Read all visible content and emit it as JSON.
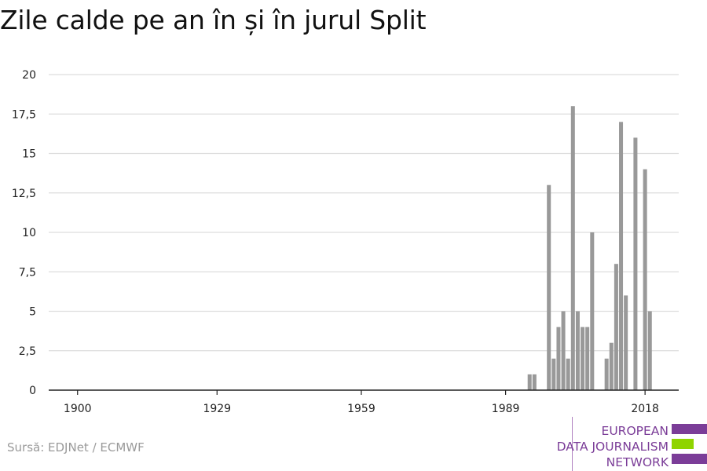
{
  "title": "Zile calde pe an în și în jurul Split",
  "source": "Sursă: EDJNet / ECMWF",
  "logo": {
    "lines": [
      "EUROPEAN",
      "DATA JOURNALISM",
      "NETWORK"
    ],
    "colors": {
      "text": "#7b3d98",
      "bar_purple": "#7b3d98",
      "bar_green": "#8fd400"
    }
  },
  "chart_data": {
    "type": "bar",
    "title": "Zile calde pe an în și în jurul Split",
    "xlabel": "",
    "ylabel": "",
    "xlim": [
      1894,
      2025
    ],
    "ylim": [
      0,
      20
    ],
    "x_ticks": [
      1900,
      1929,
      1959,
      1989,
      2018
    ],
    "x_tick_labels": [
      "1900",
      "1929",
      "1959",
      "1989",
      "2018"
    ],
    "y_ticks": [
      0,
      2.5,
      5,
      7.5,
      10,
      12.5,
      15,
      17.5,
      20
    ],
    "y_tick_labels": [
      "0",
      "2,5",
      "5",
      "7,5",
      "10",
      "12,5",
      "15",
      "17,5",
      "20"
    ],
    "grid": true,
    "bar_color": "#999999",
    "series": [
      {
        "x": [
          1994,
          1995,
          1998,
          1999,
          2000,
          2001,
          2002,
          2003,
          2004,
          2005,
          2006,
          2007,
          2008,
          2010,
          2011,
          2012,
          2013,
          2014,
          2016,
          2018,
          2019
        ],
        "values": [
          1,
          1,
          13,
          2,
          4,
          5,
          2,
          18,
          5,
          4,
          4,
          10,
          0,
          2,
          3,
          8,
          17,
          6,
          16,
          14,
          5
        ]
      }
    ]
  }
}
